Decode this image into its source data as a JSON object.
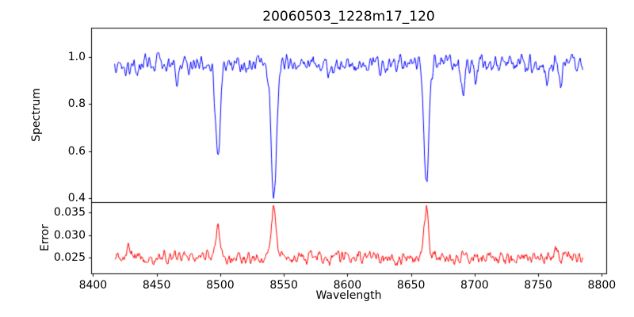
{
  "title": "20060503_1228m17_120",
  "xlabel": "Wavelength",
  "xlim": [
    8398.5,
    8803.5
  ],
  "xticks": {
    "values": [
      8400,
      8450,
      8500,
      8550,
      8600,
      8650,
      8700,
      8750,
      8800
    ],
    "labels": [
      "8400",
      "8450",
      "8500",
      "8550",
      "8600",
      "8650",
      "8700",
      "8750",
      "8800"
    ]
  },
  "chart_data": [
    {
      "type": "line",
      "name": "spectrum",
      "ylabel": "Spectrum",
      "color": "#0000ff",
      "x_start": 8417,
      "x_end": 8785,
      "n_points": 720,
      "ylim": [
        0.383,
        1.125
      ],
      "yticks": {
        "values": [
          0.4,
          0.6,
          0.8,
          1.0
        ],
        "labels": [
          "0.4",
          "0.6",
          "0.8",
          "1.0"
        ]
      },
      "continuum": 0.97,
      "noise": {
        "smooth_amp": 0.12,
        "fine_amp": 0.018
      },
      "absorption_lines": [
        {
          "center": 8498.0,
          "depth": 0.39,
          "sigma": 1.8
        },
        {
          "center": 8542.1,
          "depth": 0.55,
          "sigma": 2.2
        },
        {
          "center": 8662.1,
          "depth": 0.51,
          "sigma": 2.0
        }
      ],
      "minor_absorption_features": [
        {
          "center": 8466,
          "depth": 0.06,
          "sigma": 1.2
        },
        {
          "center": 8585,
          "depth": 0.05,
          "sigma": 1.0
        },
        {
          "center": 8691,
          "depth": 0.13,
          "sigma": 1.0
        },
        {
          "center": 8701,
          "depth": 0.08,
          "sigma": 1.0
        },
        {
          "center": 8757,
          "depth": 0.07,
          "sigma": 1.0
        },
        {
          "center": 8768,
          "depth": 0.06,
          "sigma": 1.0
        }
      ]
    },
    {
      "type": "line",
      "name": "error",
      "ylabel": "Error",
      "color": "#ff0000",
      "x_start": 8417,
      "x_end": 8785,
      "n_points": 720,
      "ylim": [
        0.0215,
        0.0373
      ],
      "yticks": {
        "values": [
          0.025,
          0.03,
          0.035
        ],
        "labels": [
          "0.025",
          "0.030",
          "0.035"
        ]
      },
      "baseline": 0.025,
      "noise": {
        "smooth_amp": 0.0045,
        "fine_amp": 0.0008
      },
      "peaks": [
        {
          "center": 8498.0,
          "height": 0.0075,
          "sigma": 1.5
        },
        {
          "center": 8542.1,
          "height": 0.0113,
          "sigma": 1.8
        },
        {
          "center": 8662.1,
          "height": 0.0108,
          "sigma": 1.6
        }
      ],
      "minor_peaks": [
        {
          "center": 8428,
          "height": 0.0022,
          "sigma": 1.5
        },
        {
          "center": 8464,
          "height": 0.0012,
          "sigma": 1.2
        },
        {
          "center": 8551,
          "height": 0.0015,
          "sigma": 1.2
        },
        {
          "center": 8691,
          "height": 0.0008,
          "sigma": 1.2
        },
        {
          "center": 8765,
          "height": 0.0015,
          "sigma": 1.5
        }
      ]
    }
  ]
}
